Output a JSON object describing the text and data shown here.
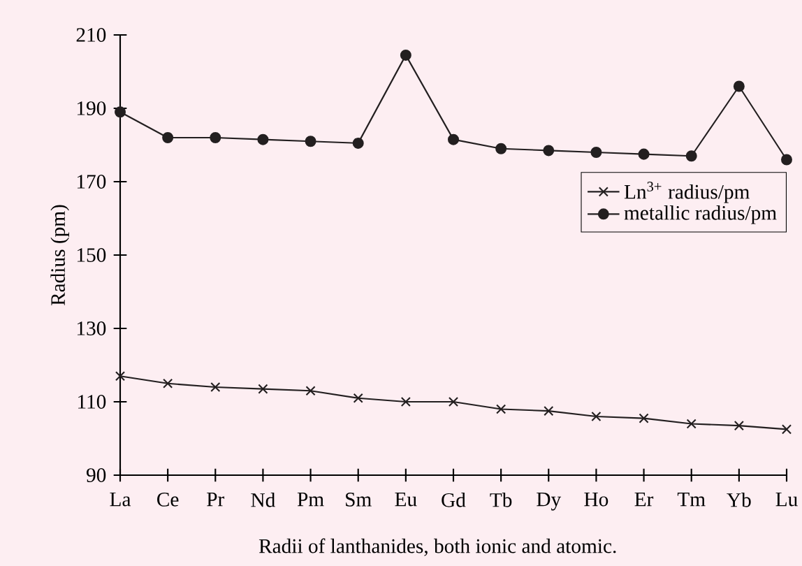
{
  "chart_data": {
    "type": "line",
    "ylabel": "Radius (pm)",
    "categories": [
      "La",
      "Ce",
      "Pr",
      "Nd",
      "Pm",
      "Sm",
      "Eu",
      "Gd",
      "Tb",
      "Dy",
      "Ho",
      "Er",
      "Tm",
      "Yb",
      "Lu"
    ],
    "series": [
      {
        "name": "Ln$^{3+}$ radius/pm",
        "color": "#231f20",
        "marker": "cross",
        "values": [
          117,
          115,
          114,
          113.5,
          113,
          111,
          110,
          110,
          108,
          107.5,
          106,
          105.5,
          104,
          103.5,
          102.5
        ]
      },
      {
        "name": "metallic radius/pm",
        "color": "#231f20",
        "marker": "circle",
        "values": [
          189,
          182,
          182,
          181.5,
          181,
          180.5,
          204.5,
          181.5,
          179,
          178.5,
          178,
          177.5,
          177,
          196,
          176
        ]
      }
    ],
    "ylim": [
      90,
      210
    ],
    "yticks": [
      90,
      110,
      130,
      150,
      170,
      190,
      210
    ],
    "legend": "right",
    "grid": false,
    "annotations": [
      "Radii of lanthanides, both ionic and atomic."
    ]
  }
}
